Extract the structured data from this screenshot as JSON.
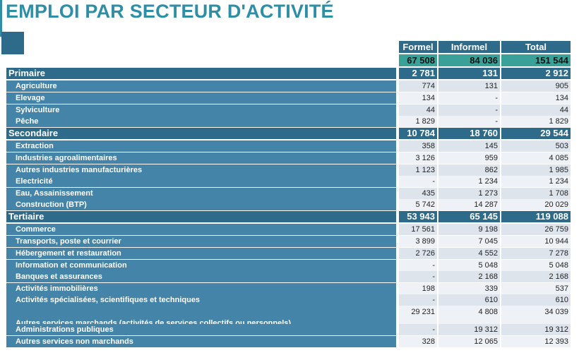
{
  "title": "EMPLOI PAR SECTEUR D'ACTIVITÉ",
  "columns": [
    "Formel",
    "Informel",
    "Total"
  ],
  "totals": [
    "67 508",
    "84 036",
    "151 544"
  ],
  "colors": {
    "title": "#2e8ea6",
    "header": "#2e6b8a",
    "label": "#4584a9",
    "total_band": "#3aa199"
  },
  "rows": [
    {
      "label": "Primaire",
      "type": "sec",
      "values": [
        "2 781",
        "131",
        "2 912"
      ]
    },
    {
      "label": "Agriculture",
      "type": "sub",
      "values": [
        "774",
        "131",
        "905"
      ]
    },
    {
      "label": "Elevage",
      "type": "sub",
      "values": [
        "134",
        "-",
        "134"
      ]
    },
    {
      "label": "Sylviculture",
      "type": "sub",
      "values": [
        "44",
        "-",
        "44"
      ]
    },
    {
      "label": "Pêche",
      "type": "sub",
      "values": [
        "1 829",
        "-",
        "1 829"
      ]
    },
    {
      "label": "Secondaire",
      "type": "sec",
      "values": [
        "10 784",
        "18 760",
        "29 544"
      ]
    },
    {
      "label": "Extraction",
      "type": "sub",
      "values": [
        "358",
        "145",
        "503"
      ]
    },
    {
      "label": "Industries agroalimentaires",
      "type": "sub",
      "values": [
        "3 126",
        "959",
        "4 085"
      ]
    },
    {
      "label": "Autres industries manufacturières",
      "type": "sub",
      "values": [
        "1 123",
        "862",
        "1 985"
      ]
    },
    {
      "label": "Electricité",
      "type": "sub",
      "values": [
        "-",
        "1 234",
        "1 234"
      ]
    },
    {
      "label": "Eau, Assainissement",
      "type": "sub",
      "values": [
        "435",
        "1 273",
        "1 708"
      ]
    },
    {
      "label": "Construction (BTP)",
      "type": "sub",
      "values": [
        "5 742",
        "14 287",
        "20 029"
      ]
    },
    {
      "label": "Tertiaire",
      "type": "sec",
      "values": [
        "53 943",
        "65 145",
        "119 088"
      ]
    },
    {
      "label": "Commerce",
      "type": "sub",
      "values": [
        "17 561",
        "9 198",
        "26 759"
      ]
    },
    {
      "label": "Transports, poste et courrier",
      "type": "sub",
      "values": [
        "3 899",
        "7 045",
        "10 944"
      ]
    },
    {
      "label": "Hébergement et restauration",
      "type": "sub",
      "values": [
        "2 726",
        "4 552",
        "7 278"
      ]
    },
    {
      "label": "Information et communication",
      "type": "sub",
      "values": [
        "-",
        "5 048",
        "5 048"
      ]
    },
    {
      "label": "Banques et assurances",
      "type": "sub",
      "values": [
        "-",
        "2 168",
        "2 168"
      ]
    },
    {
      "label": "Activités immobilières",
      "type": "sub",
      "values": [
        "198",
        "339",
        "537"
      ]
    },
    {
      "label": "Activités spécialisées, scientifiques et techniques",
      "type": "sub",
      "values": [
        "-",
        "610",
        "610"
      ]
    },
    {
      "label": "Autres services marchands (activités de services collectifs ou personnels)",
      "type": "sub",
      "tall": true,
      "values": [
        "29 231",
        "4 808",
        "34 039"
      ]
    },
    {
      "label": "Administrations publiques",
      "type": "sub",
      "values": [
        "-",
        "19 312",
        "19 312"
      ]
    },
    {
      "label": "Autres services non marchands",
      "type": "sub",
      "values": [
        "328",
        "12 065",
        "12 393"
      ]
    }
  ]
}
